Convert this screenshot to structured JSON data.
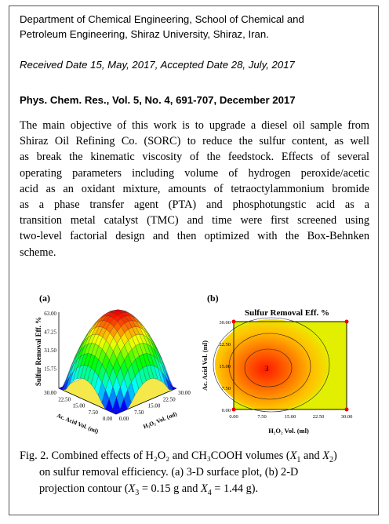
{
  "affiliation": [
    "Department of Chemical Engineering, School of Chemical and",
    "Petroleum Engineering, Shiraz University, Shiraz, Iran."
  ],
  "dates": "Received Date 15, May, 2017, Accepted Date 28, July, 2017",
  "citation": "Phys. Chem. Res., Vol. 5, No. 4, 691-707, December 2017",
  "abstract": [
    "The main objective of this work is to upgrade a diesel oil sample from",
    "Shiraz Oil Refining Co. (SORC) to reduce the sulfur content, as well",
    "as break the kinematic viscosity of the feedstock. Effects of several",
    "operating parameters including volume of hydrogen peroxide/acetic",
    "acid as an oxidant mixture, amounts of tetraoctylammonium bromide",
    "as a phase transfer agent (PTA) and phosphotungstic acid as a",
    "transition metal catalyst (TMC) and time were first screened using",
    "two-level factorial design and then optimized with the Box-Behnken",
    "scheme."
  ],
  "figure": {
    "panels": [
      {
        "label": "(a)",
        "z_axis_label": "Sulfur Removal Eff. %",
        "z_ticks": [
          "63.00",
          "47.25",
          "31.50",
          "15.75"
        ],
        "x_axis_label": "Ac. Acid Vol. (ml)",
        "x_ticks": [
          "30.00",
          "22.50",
          "15.00",
          "7.50",
          "0.00"
        ],
        "y_axis_label": "H₂O₂ Vol. (ml)",
        "y_ticks": [
          "0.00",
          "7.50",
          "15.00",
          "22.50",
          "30.00"
        ]
      },
      {
        "label": "(b)",
        "title": "Sulfur Removal Eff. %",
        "y_axis_label": "Ac. Acid Vol. (ml)",
        "y_ticks": [
          "30.00",
          "22.50",
          "15.00",
          "7.50",
          "0.00"
        ],
        "x_axis_label": "H₂O₂ Vol. (ml)",
        "x_ticks": [
          "0.00",
          "7.50",
          "15.00",
          "22.50",
          "30.00"
        ],
        "center_label": "3"
      }
    ],
    "caption": [
      [
        "Fig. 2. Combined effects of H₂O₂ and CH₃COOH volumes (",
        "X",
        "1",
        " and ",
        "X",
        "2",
        ")"
      ],
      [
        "on sulfur removal efficiency. (a) 3-D surface plot, (b) 2-D"
      ],
      [
        "projection contour (",
        "X",
        "3",
        " = 0.15 g and ",
        "X",
        "4",
        " = 1.44 g)."
      ]
    ]
  }
}
